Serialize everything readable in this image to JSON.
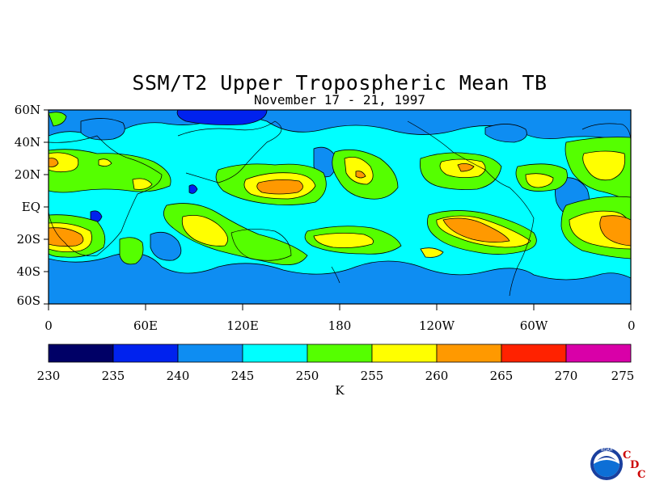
{
  "title": "SSM/T2 Upper Tropospheric Mean TB",
  "subtitle": "November 17 - 21, 1997",
  "lat_labels": [
    "60N",
    "40N",
    "20N",
    "EQ",
    "20S",
    "40S",
    "60S"
  ],
  "lon_labels": [
    "0",
    "60E",
    "120E",
    "180",
    "120W",
    "60W",
    "0"
  ],
  "colorbar": {
    "ticks": [
      "230",
      "235",
      "240",
      "245",
      "250",
      "255",
      "260",
      "265",
      "270",
      "275"
    ],
    "colors": [
      "#000066",
      "#0022ee",
      "#0e8df2",
      "#00ffff",
      "#55ff00",
      "#ffff00",
      "#ff9900",
      "#ff2200",
      "#d900a8"
    ],
    "unit": "K"
  },
  "logo": {
    "agency": "NOAA",
    "letters": [
      "C",
      "D",
      "C"
    ]
  }
}
